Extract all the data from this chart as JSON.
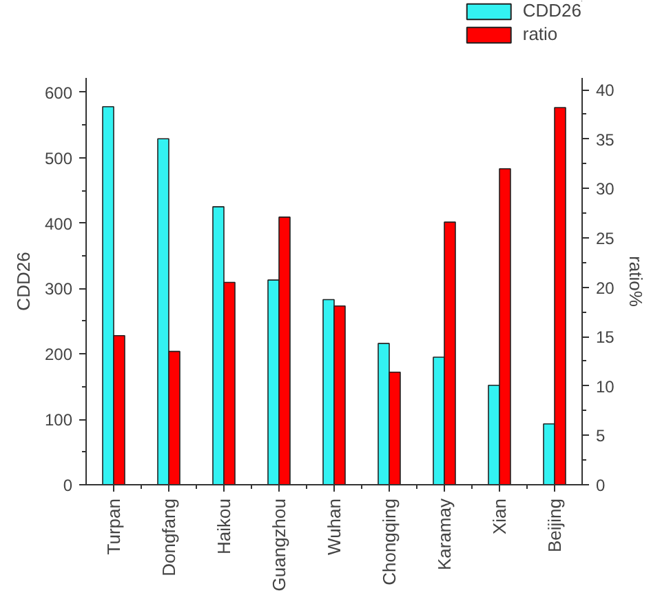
{
  "chart_data": {
    "type": "bar",
    "categories": [
      "Turpan",
      "Dongfang",
      "Haikou",
      "Guangzhou",
      "Wuhan",
      "Chongqing",
      "Karamay",
      "Xian",
      "Beijing"
    ],
    "ylabel": "CDD26",
    "y2label": "ratio%",
    "series": [
      {
        "name": "CDD26",
        "color": "#33f2f2",
        "values": [
          578,
          529,
          425,
          313,
          283,
          216,
          195,
          152,
          93
        ]
      },
      {
        "name": "ratio",
        "color": "#ff0000",
        "axis": "y2",
        "values": [
          15.1,
          13.5,
          20.5,
          27.1,
          18.1,
          11.4,
          26.6,
          32.0,
          38.2
        ]
      }
    ],
    "ylim": [
      0,
      622
    ],
    "yticks": [
      0,
      100,
      200,
      300,
      400,
      500,
      600
    ],
    "y2lim": [
      0,
      41.2
    ],
    "y2ticks": [
      0,
      5,
      10,
      15,
      20,
      25,
      30,
      35,
      40
    ],
    "grid": false,
    "legend": "top right"
  }
}
